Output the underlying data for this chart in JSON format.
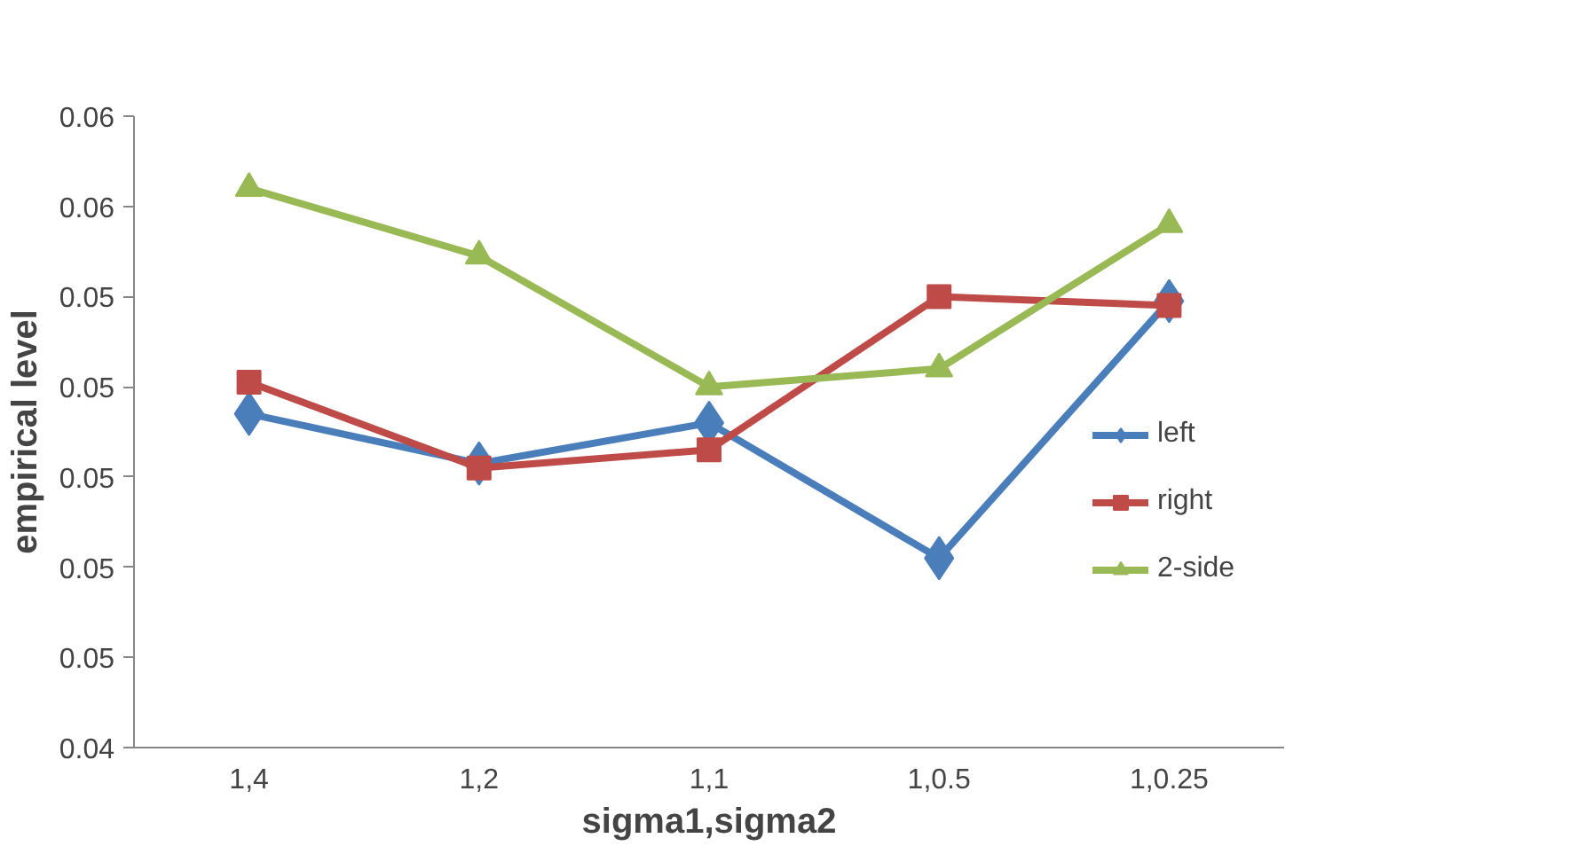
{
  "chart_data": {
    "type": "line",
    "xlabel": "sigma1,sigma2",
    "ylabel": "empirical level",
    "categories": [
      "1,4",
      "1,2",
      "1,1",
      "1,0.5",
      "1,0.25"
    ],
    "ylim": [
      0.044,
      0.058
    ],
    "yticks": [
      {
        "value": 0.044,
        "label": "0.04"
      },
      {
        "value": 0.046,
        "label": "0.05"
      },
      {
        "value": 0.048,
        "label": "0.05"
      },
      {
        "value": 0.05,
        "label": "0.05"
      },
      {
        "value": 0.052,
        "label": "0.05"
      },
      {
        "value": 0.054,
        "label": "0.05"
      },
      {
        "value": 0.056,
        "label": "0.06"
      },
      {
        "value": 0.058,
        "label": "0.06"
      }
    ],
    "series": [
      {
        "name": "left",
        "color": "#4a7ebb",
        "marker": "diamond",
        "values": [
          0.0514,
          0.0503,
          0.0512,
          0.0482,
          0.0539
        ]
      },
      {
        "name": "right",
        "color": "#be4b48",
        "marker": "square",
        "values": [
          0.0521,
          0.0502,
          0.0506,
          0.054,
          0.0538
        ]
      },
      {
        "name": "2-side",
        "color": "#98b954",
        "marker": "triangle",
        "values": [
          0.0564,
          0.0549,
          0.052,
          0.0524,
          0.0556
        ]
      }
    ],
    "grid": false,
    "legend": "right",
    "line_style": "solid"
  }
}
